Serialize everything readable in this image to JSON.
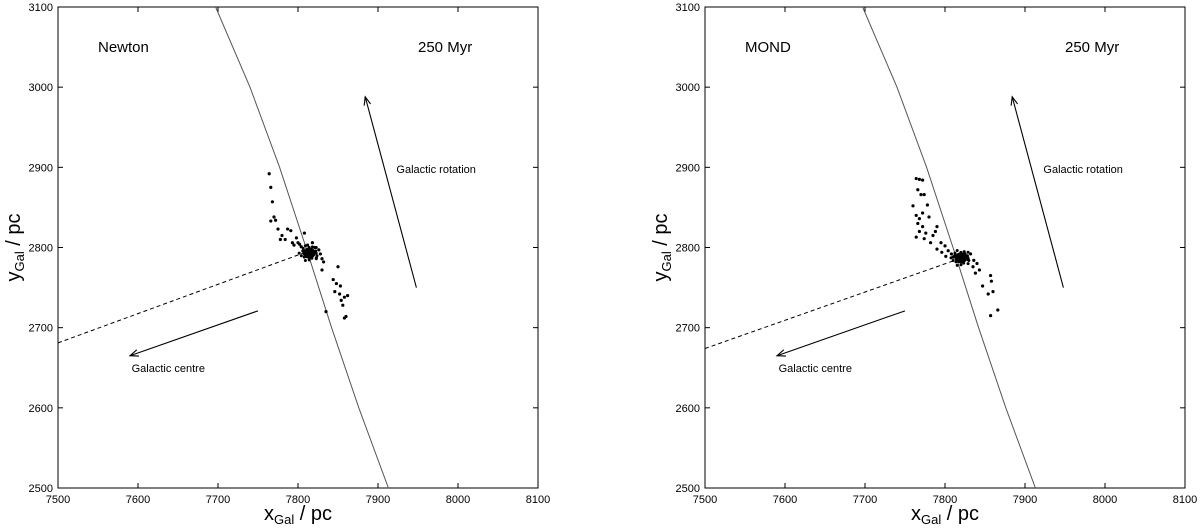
{
  "chart_data": [
    {
      "type": "scatter",
      "panel": "left",
      "label": "Newton",
      "time": "250 Myr",
      "xlabel": "x",
      "xlabel_sub": "Gal",
      "xlabel_unit": " / pc",
      "ylabel": "y",
      "ylabel_sub": "Gal",
      "ylabel_unit": " / pc",
      "xlim": [
        7500,
        8100
      ],
      "ylim": [
        2500,
        3100
      ],
      "xticks": [
        "7500",
        "7600",
        "7700",
        "7800",
        "7900",
        "8000",
        "8100"
      ],
      "yticks": [
        "2500",
        "2600",
        "2700",
        "2800",
        "2900",
        "3000",
        "3100"
      ],
      "grid": false,
      "orbit": [
        [
          7697,
          3100
        ],
        [
          7740,
          3000
        ],
        [
          7777,
          2900
        ],
        [
          7810,
          2800
        ],
        [
          7842,
          2700
        ],
        [
          7876,
          2600
        ],
        [
          7913,
          2500
        ]
      ],
      "centre_line": {
        "from": [
          7500,
          2681
        ],
        "to": [
          7812,
          2795
        ]
      },
      "arrow_centre": {
        "from": [
          7750,
          2721
        ],
        "to": [
          7590,
          2665
        ],
        "label": "Galactic centre",
        "label_pos": [
          7592,
          2645
        ]
      },
      "arrow_rotation": {
        "from": [
          7948,
          2750
        ],
        "to": [
          7884,
          2988
        ],
        "label": "Galactic rotation",
        "label_pos": [
          7923,
          2893
        ]
      },
      "cluster_core": [
        7814,
        2793
      ],
      "points": [
        [
          7764,
          2892
        ],
        [
          7766,
          2875
        ],
        [
          7768,
          2857
        ],
        [
          7770,
          2838
        ],
        [
          7766,
          2833
        ],
        [
          7772,
          2834
        ],
        [
          7775,
          2823
        ],
        [
          7780,
          2815
        ],
        [
          7778,
          2810
        ],
        [
          7787,
          2823
        ],
        [
          7791,
          2821
        ],
        [
          7784,
          2810
        ],
        [
          7793,
          2806
        ],
        [
          7798,
          2812
        ],
        [
          7800,
          2806
        ],
        [
          7802,
          2804
        ],
        [
          7795,
          2803
        ],
        [
          7804,
          2801
        ],
        [
          7808,
          2818
        ],
        [
          7812,
          2803
        ],
        [
          7818,
          2806
        ],
        [
          7821,
          2800
        ],
        [
          7826,
          2797
        ],
        [
          7828,
          2792
        ],
        [
          7823,
          2787
        ],
        [
          7830,
          2786
        ],
        [
          7832,
          2782
        ],
        [
          7830,
          2772
        ],
        [
          7850,
          2776
        ],
        [
          7844,
          2760
        ],
        [
          7848,
          2755
        ],
        [
          7853,
          2752
        ],
        [
          7846,
          2745
        ],
        [
          7852,
          2742
        ],
        [
          7854,
          2734
        ],
        [
          7858,
          2738
        ],
        [
          7862,
          2740
        ],
        [
          7856,
          2728
        ],
        [
          7860,
          2714
        ],
        [
          7858,
          2712
        ],
        [
          7835,
          2720
        ]
      ]
    },
    {
      "type": "scatter",
      "panel": "right",
      "label": "MOND",
      "time": "250 Myr",
      "xlabel": "x",
      "xlabel_sub": "Gal",
      "xlabel_unit": " / pc",
      "ylabel": "y",
      "ylabel_sub": "Gal",
      "ylabel_unit": " / pc",
      "xlim": [
        7500,
        8100
      ],
      "ylim": [
        2500,
        3100
      ],
      "xticks": [
        "7500",
        "7600",
        "7700",
        "7800",
        "7900",
        "8000",
        "8100"
      ],
      "yticks": [
        "2500",
        "2600",
        "2700",
        "2800",
        "2900",
        "3000",
        "3100"
      ],
      "grid": false,
      "orbit": [
        [
          7697,
          3100
        ],
        [
          7740,
          3000
        ],
        [
          7777,
          2900
        ],
        [
          7810,
          2800
        ],
        [
          7842,
          2700
        ],
        [
          7876,
          2600
        ],
        [
          7913,
          2500
        ]
      ],
      "centre_line": {
        "from": [
          7500,
          2674
        ],
        "to": [
          7818,
          2786
        ]
      },
      "arrow_centre": {
        "from": [
          7750,
          2721
        ],
        "to": [
          7590,
          2665
        ],
        "label": "Galactic centre",
        "label_pos": [
          7592,
          2645
        ]
      },
      "arrow_rotation": {
        "from": [
          7948,
          2750
        ],
        "to": [
          7884,
          2988
        ],
        "label": "Galactic rotation",
        "label_pos": [
          7923,
          2893
        ]
      },
      "cluster_core": [
        7820,
        2787
      ],
      "points": [
        [
          7764,
          2886
        ],
        [
          7768,
          2885
        ],
        [
          7772,
          2884
        ],
        [
          7766,
          2872
        ],
        [
          7770,
          2866
        ],
        [
          7774,
          2866
        ],
        [
          7760,
          2852
        ],
        [
          7778,
          2853
        ],
        [
          7772,
          2843
        ],
        [
          7764,
          2840
        ],
        [
          7768,
          2836
        ],
        [
          7780,
          2838
        ],
        [
          7766,
          2830
        ],
        [
          7772,
          2826
        ],
        [
          7768,
          2820
        ],
        [
          7776,
          2818
        ],
        [
          7764,
          2813
        ],
        [
          7774,
          2811
        ],
        [
          7785,
          2815
        ],
        [
          7790,
          2826
        ],
        [
          7788,
          2820
        ],
        [
          7782,
          2806
        ],
        [
          7795,
          2806
        ],
        [
          7800,
          2802
        ],
        [
          7790,
          2798
        ],
        [
          7796,
          2794
        ],
        [
          7804,
          2796
        ],
        [
          7808,
          2792
        ],
        [
          7801,
          2789
        ],
        [
          7810,
          2788
        ],
        [
          7825,
          2792
        ],
        [
          7832,
          2792
        ],
        [
          7829,
          2785
        ],
        [
          7836,
          2784
        ],
        [
          7840,
          2780
        ],
        [
          7835,
          2776
        ],
        [
          7843,
          2772
        ],
        [
          7838,
          2768
        ],
        [
          7857,
          2765
        ],
        [
          7858,
          2758
        ],
        [
          7860,
          2745
        ],
        [
          7854,
          2742
        ],
        [
          7866,
          2722
        ],
        [
          7857,
          2715
        ],
        [
          7847,
          2752
        ]
      ]
    }
  ]
}
